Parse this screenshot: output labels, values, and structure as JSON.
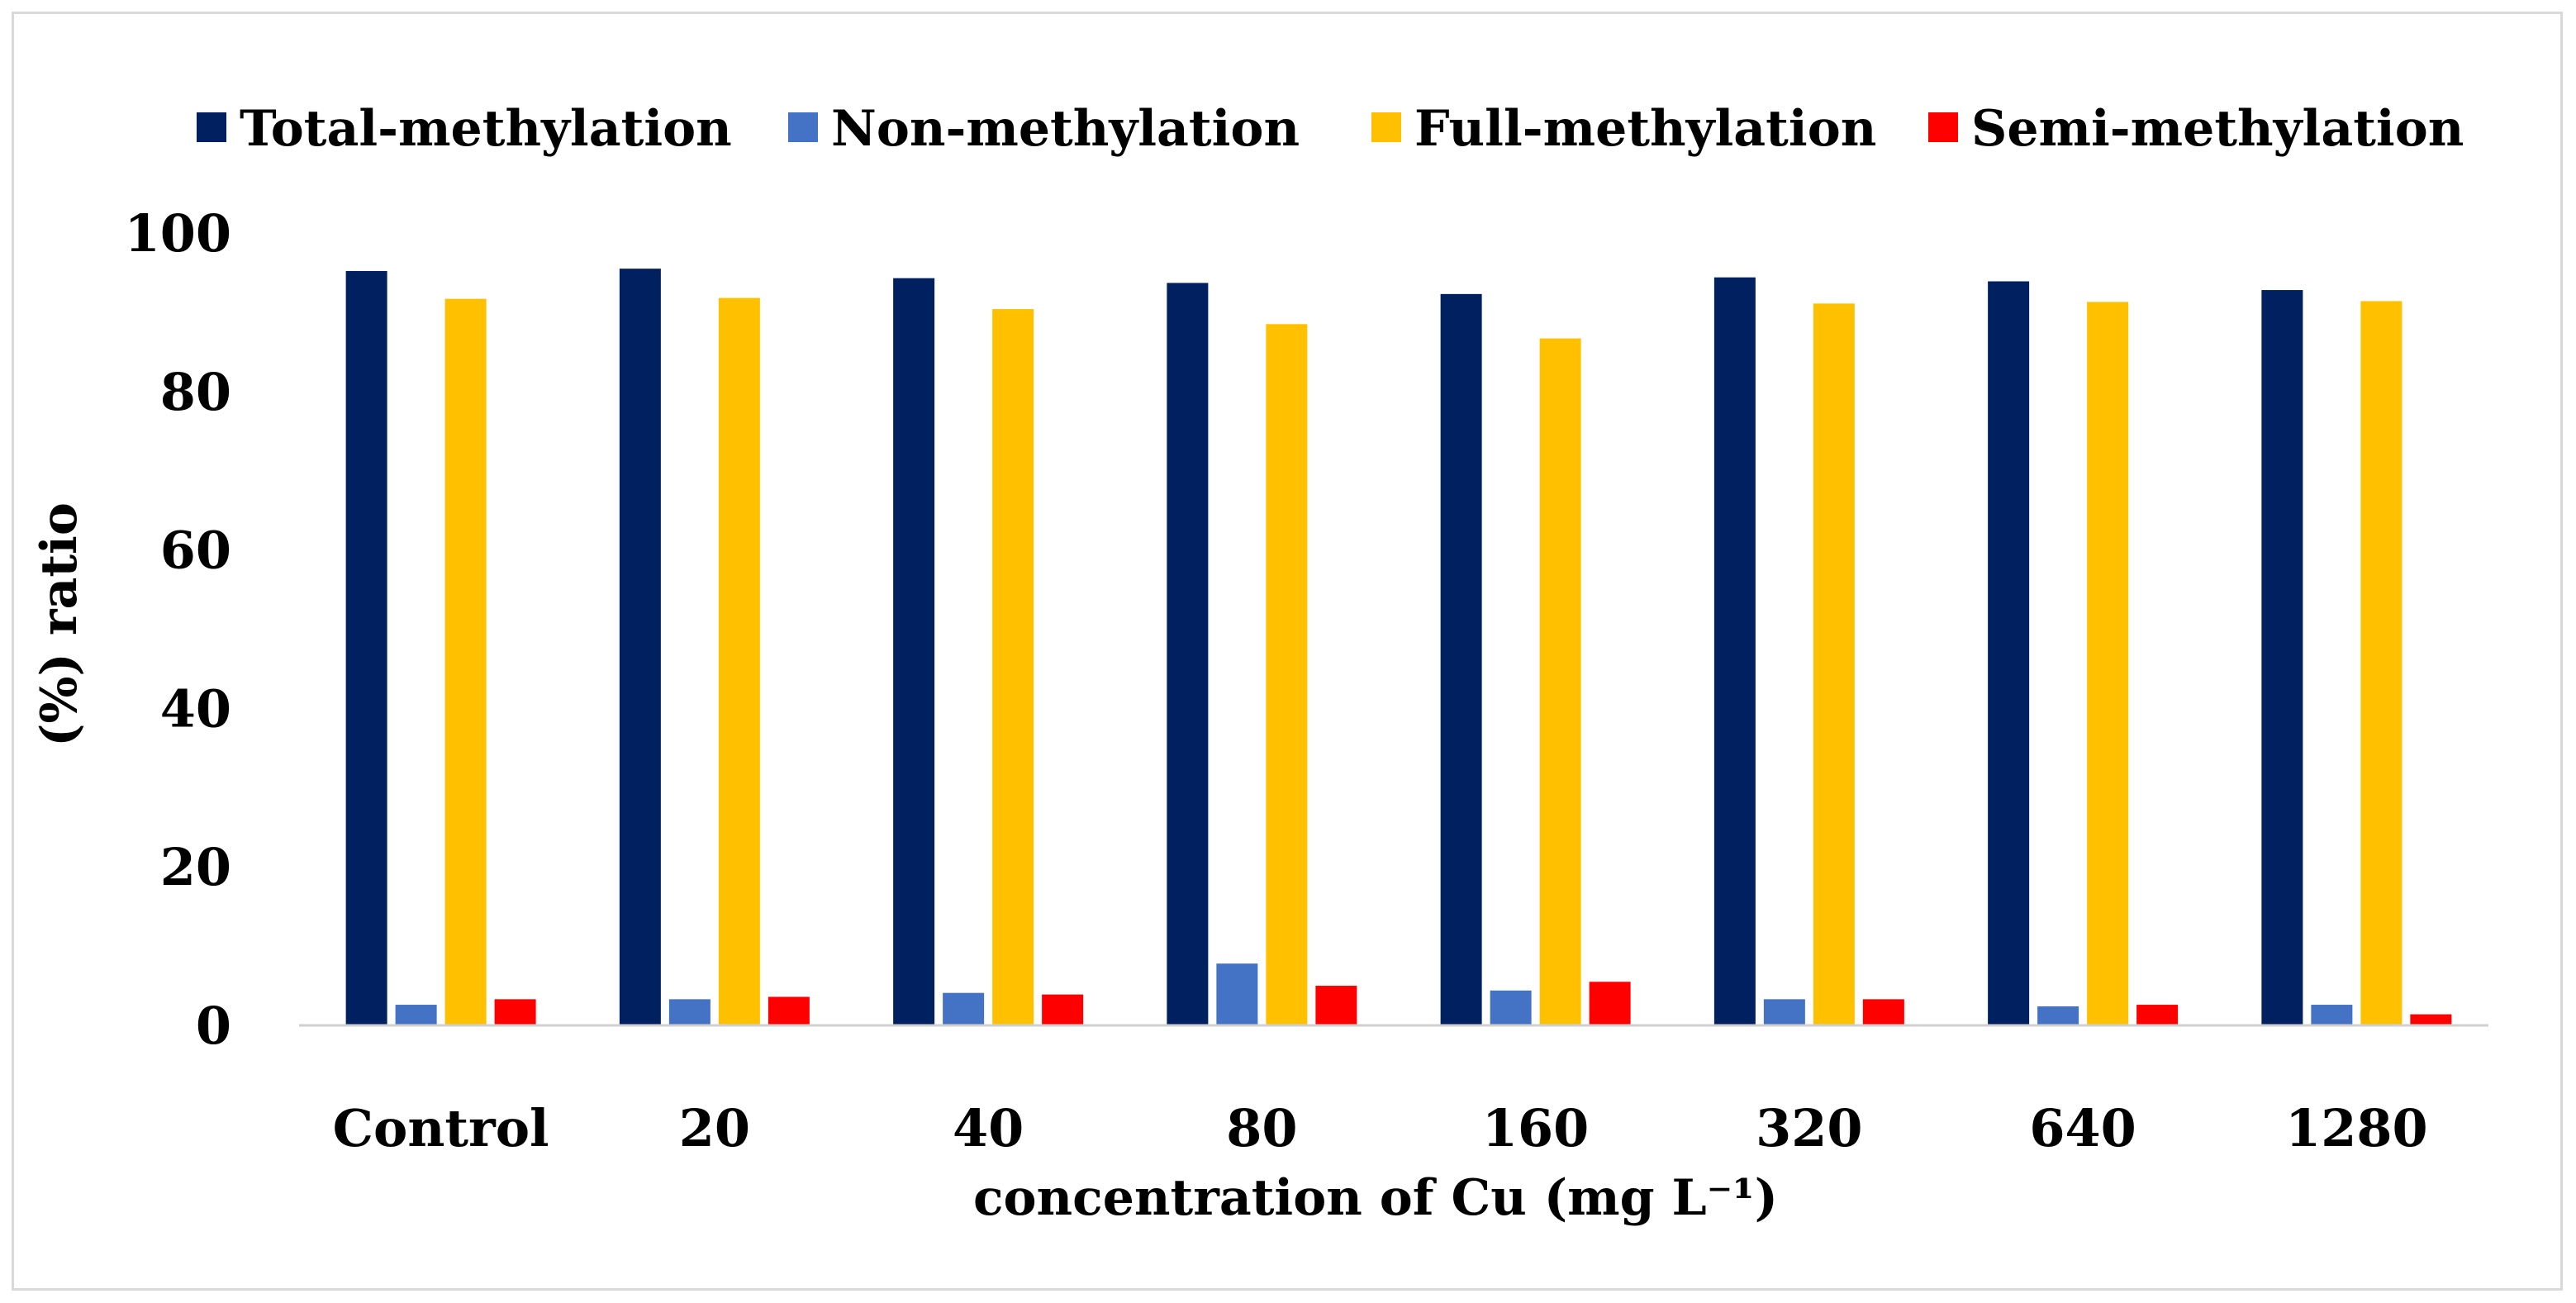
{
  "chart_data": {
    "type": "bar",
    "title": "",
    "xlabel": "concentration of Cu (mg L⁻¹)",
    "ylabel": "(%) ratio",
    "ylim": [
      0,
      100
    ],
    "yticks": [
      "0",
      "20",
      "40",
      "60",
      "80",
      "100"
    ],
    "grid": false,
    "legend_position": "top",
    "categories": [
      "Control",
      "20",
      "40",
      "80",
      "160",
      "320",
      "640",
      "1280"
    ],
    "series": [
      {
        "name": "Total-methylation",
        "color": "#002060",
        "values": [
          95.2,
          95.5,
          94.3,
          93.7,
          92.3,
          94.4,
          93.9,
          92.8
        ]
      },
      {
        "name": "Non-methylation",
        "color": "#4472C4",
        "values": [
          2.6,
          3.3,
          4.1,
          7.8,
          4.4,
          3.3,
          2.4,
          2.6
        ]
      },
      {
        "name": "Full-methylation",
        "color": "#FFC000",
        "values": [
          91.7,
          91.8,
          90.4,
          88.5,
          86.7,
          91.1,
          91.3,
          91.4
        ]
      },
      {
        "name": "Semi-methylation",
        "color": "#FF0000",
        "values": [
          3.3,
          3.6,
          3.9,
          5.0,
          5.5,
          3.3,
          2.6,
          1.4
        ]
      }
    ]
  }
}
